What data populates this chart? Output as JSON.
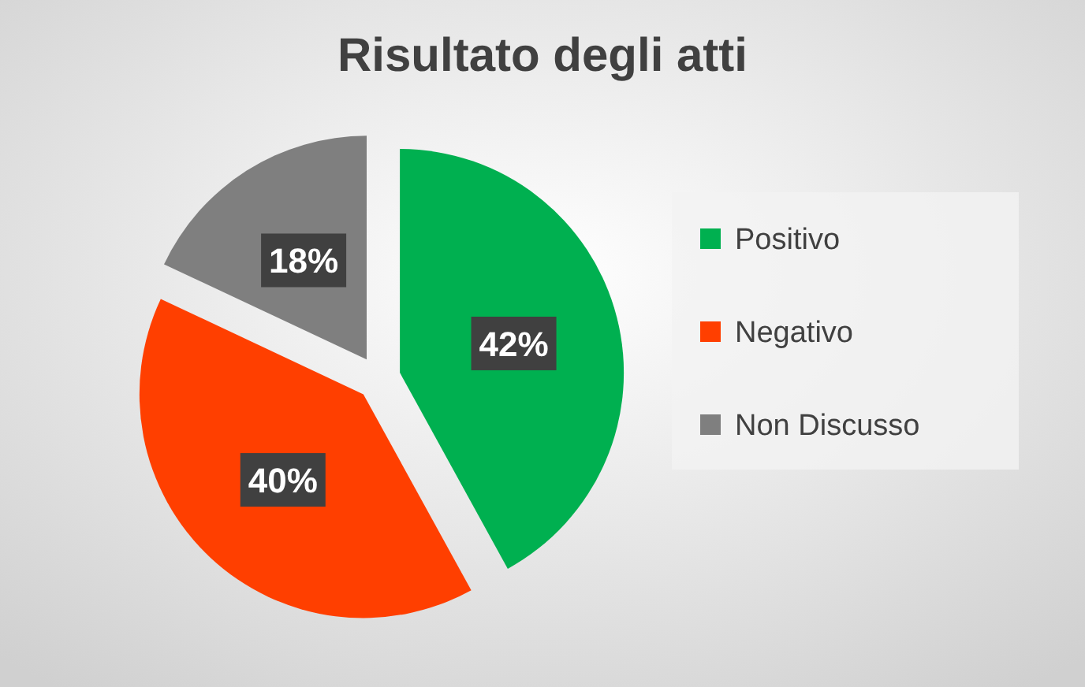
{
  "chart_data": {
    "type": "pie",
    "title": "Risultato degli atti",
    "categories": [
      "Positivo",
      "Negativo",
      "Non Discusso"
    ],
    "values": [
      42,
      40,
      18
    ],
    "colors": [
      "#00b050",
      "#ff3f00",
      "#7f7f7f"
    ],
    "value_labels": [
      "42%",
      "40%",
      "18%"
    ],
    "legend": "right"
  }
}
